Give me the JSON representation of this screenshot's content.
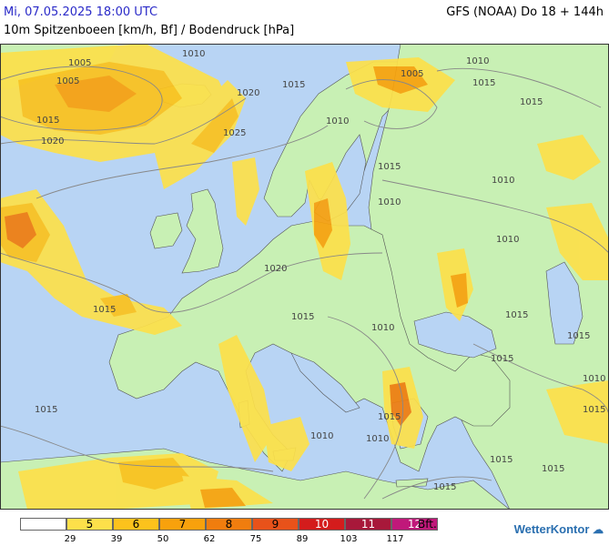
{
  "header": {
    "date": "Mi, 07.05.2025 18:00 UTC",
    "model": "GFS (NOAA) Do 18 + 144h",
    "title": "10m Spitzenboeen [km/h, Bf] / Bodendruck [hPa]"
  },
  "legend": {
    "bft_unit": "Bft.",
    "classes": [
      {
        "bft": "",
        "color": "#ffffff"
      },
      {
        "bft": "5",
        "color": "#fde04a"
      },
      {
        "bft": "6",
        "color": "#fcc21c"
      },
      {
        "bft": "7",
        "color": "#f8a10c"
      },
      {
        "bft": "8",
        "color": "#f07d0e"
      },
      {
        "bft": "9",
        "color": "#e8521a"
      },
      {
        "bft": "10",
        "color": "#d41c1c"
      },
      {
        "bft": "11",
        "color": "#a8183a"
      },
      {
        "bft": "12",
        "color": "#c0187a"
      }
    ],
    "ticks": [
      "29",
      "39",
      "50",
      "62",
      "75",
      "89",
      "103",
      "117"
    ]
  },
  "map": {
    "colors": {
      "sea": "#b8d4f4",
      "land": "#c8f0b4",
      "border": "#555555",
      "isobar": "#888888"
    },
    "isobar_labels": [
      "1005",
      "1005",
      "1010",
      "1015",
      "1020",
      "1025",
      "1020",
      "1015",
      "1010",
      "1005",
      "1010",
      "1015",
      "1015",
      "1015",
      "1010",
      "1010",
      "1010",
      "1015",
      "1020",
      "1015",
      "1010",
      "1015",
      "1015",
      "1015",
      "1010",
      "1010",
      "1015",
      "1010",
      "1015",
      "1015",
      "1015",
      "1015",
      "1015"
    ]
  },
  "branding": {
    "logo": "WetterKontor"
  }
}
